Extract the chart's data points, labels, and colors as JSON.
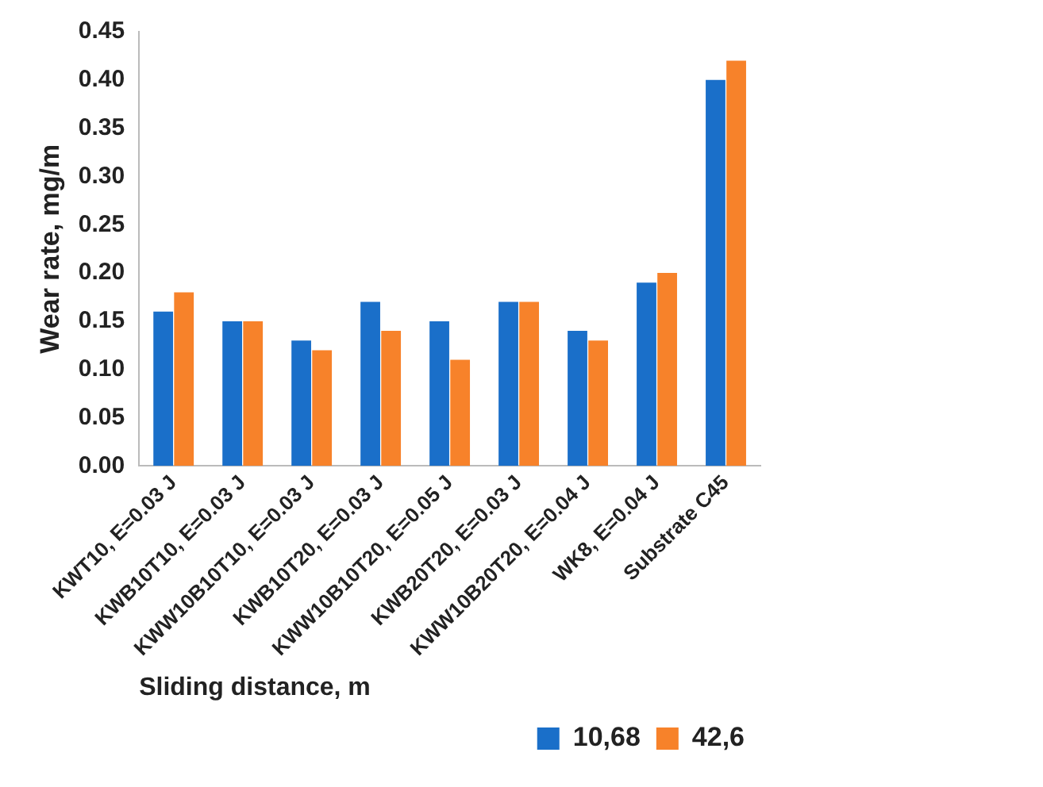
{
  "chart_data": {
    "type": "bar",
    "xlabel": "Sliding distance, m",
    "ylabel": "Wear rate, mg/m",
    "categories": [
      "KWT10, E=0.03 J",
      "KWB10T10, E=0.03 J",
      "KWW10B10T10, E=0.03 J",
      "KWB10T20, E=0.03 J",
      "KWW10B10T20, E=0.05 J",
      "KWB20T20, E=0.03 J",
      "KWW10B20T20, E=0.04 J",
      "WK8, E=0.04 J",
      "Substrate C45"
    ],
    "series": [
      {
        "name": "10,68",
        "color": "#1a6fc9",
        "values": [
          0.16,
          0.15,
          0.13,
          0.17,
          0.15,
          0.17,
          0.14,
          0.19,
          0.4
        ]
      },
      {
        "name": "42,6",
        "color": "#f7822a",
        "values": [
          0.18,
          0.15,
          0.12,
          0.14,
          0.11,
          0.17,
          0.13,
          0.2,
          0.42
        ]
      }
    ],
    "ylim": [
      0,
      0.45
    ],
    "yticks": [
      {
        "value": 0,
        "label": "0.00"
      },
      {
        "value": 0.05,
        "label": "0.05"
      },
      {
        "value": 0.1,
        "label": "0.10"
      },
      {
        "value": 0.15,
        "label": "0.15"
      },
      {
        "value": 0.2,
        "label": "0.20"
      },
      {
        "value": 0.25,
        "label": "0.25"
      },
      {
        "value": 0.3,
        "label": "0.30"
      },
      {
        "value": 0.35,
        "label": "0.35"
      },
      {
        "value": 0.4,
        "label": "0.40"
      },
      {
        "value": 0.45,
        "label": "0.45"
      }
    ],
    "grid": false,
    "legend": "bottom"
  }
}
